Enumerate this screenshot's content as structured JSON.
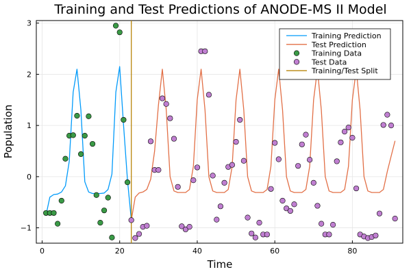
{
  "chart_data": {
    "type": "line",
    "title": "Training and Test Predictions of ANODE-MS II Model",
    "xlabel": "Time",
    "ylabel": "Population",
    "xlim": [
      -1.5,
      93
    ],
    "ylim": [
      -1.3,
      3.05
    ],
    "xticks": [
      0,
      20,
      40,
      60,
      80
    ],
    "yticks": [
      -1,
      0,
      1,
      2,
      3
    ],
    "grid": true,
    "legend_position": "top-right",
    "split_x": 23,
    "series": [
      {
        "name": "Training Prediction",
        "kind": "line",
        "color": "#009AFA",
        "x": [
          1,
          2,
          3,
          4,
          5,
          6,
          7,
          8,
          9,
          10,
          11,
          12,
          13,
          14,
          15,
          16,
          17,
          18,
          19,
          20,
          21,
          22,
          23
        ],
        "y": [
          -0.75,
          -0.4,
          -0.35,
          -0.34,
          -0.3,
          -0.18,
          0.3,
          1.65,
          2.1,
          1.3,
          -0.1,
          -0.3,
          -0.33,
          -0.33,
          -0.33,
          -0.32,
          -0.25,
          0.05,
          1.65,
          2.15,
          1.0,
          -0.05,
          -0.85
        ]
      },
      {
        "name": "Test Prediction",
        "kind": "line",
        "color": "#E26F46",
        "x": [
          23,
          24,
          25,
          26,
          27,
          28,
          29,
          30,
          31,
          32,
          33,
          34,
          35,
          36,
          37,
          38,
          39,
          40,
          41,
          42,
          43,
          44,
          45,
          46,
          47,
          48,
          49,
          50,
          51,
          52,
          53,
          54,
          55,
          56,
          57,
          58,
          59,
          60,
          61,
          62,
          63,
          64,
          65,
          66,
          67,
          68,
          69,
          70,
          71,
          72,
          73,
          74,
          75,
          76,
          77,
          78,
          79,
          80,
          81,
          82,
          83,
          84,
          85,
          86,
          87,
          88,
          89,
          90,
          91
        ],
        "y": [
          -0.85,
          -0.4,
          -0.32,
          -0.3,
          -0.25,
          -0.05,
          0.5,
          1.4,
          2.1,
          1.3,
          0.0,
          -0.28,
          -0.31,
          -0.31,
          -0.31,
          -0.25,
          0.2,
          1.5,
          2.1,
          1.3,
          0.0,
          -0.28,
          -0.31,
          -0.31,
          -0.31,
          -0.25,
          0.2,
          1.5,
          2.1,
          1.3,
          0.0,
          -0.28,
          -0.31,
          -0.31,
          -0.31,
          -0.25,
          0.2,
          1.5,
          2.1,
          1.3,
          0.0,
          -0.28,
          -0.31,
          -0.31,
          -0.31,
          -0.25,
          0.2,
          1.5,
          2.1,
          1.3,
          0.0,
          -0.28,
          -0.31,
          -0.31,
          -0.31,
          -0.25,
          0.2,
          1.5,
          2.1,
          1.3,
          0.0,
          -0.28,
          -0.31,
          -0.31,
          -0.31,
          -0.25,
          0.1,
          0.4,
          0.7
        ]
      },
      {
        "name": "Training Data",
        "kind": "scatter",
        "color": "#3A9A46",
        "x": [
          1,
          2,
          3,
          4,
          5,
          6,
          7,
          8,
          9,
          10,
          11,
          12,
          13,
          14,
          15,
          16,
          17,
          18,
          19,
          20,
          21,
          22
        ],
        "y": [
          -0.71,
          -0.71,
          -0.71,
          -0.92,
          -0.47,
          0.35,
          0.8,
          0.81,
          1.19,
          0.44,
          0.8,
          1.18,
          0.64,
          -0.36,
          -0.9,
          -0.66,
          -0.41,
          -1.19,
          2.95,
          2.82,
          1.11,
          -0.11
        ]
      },
      {
        "name": "Test Data",
        "kind": "scatter",
        "color": "#C07FD1",
        "x": [
          23,
          24,
          25,
          26,
          27,
          28,
          29,
          30,
          31,
          32,
          33,
          34,
          35,
          36,
          37,
          38,
          39,
          40,
          41,
          42,
          43,
          44,
          45,
          46,
          47,
          48,
          49,
          50,
          51,
          52,
          53,
          54,
          55,
          56,
          57,
          58,
          59,
          60,
          61,
          62,
          63,
          64,
          65,
          66,
          67,
          68,
          69,
          70,
          71,
          72,
          73,
          74,
          75,
          76,
          77,
          78,
          79,
          80,
          81,
          82,
          83,
          84,
          85,
          86,
          87,
          88,
          89,
          90,
          91
        ],
        "y": [
          -0.85,
          -1.2,
          -1.12,
          -0.98,
          -0.96,
          0.69,
          0.13,
          0.13,
          1.53,
          1.42,
          1.14,
          0.74,
          -0.2,
          -0.97,
          -1.03,
          -0.98,
          -0.07,
          0.18,
          2.45,
          2.45,
          1.6,
          0.02,
          -0.84,
          -0.58,
          -0.12,
          0.19,
          0.23,
          0.68,
          1.11,
          0.31,
          -0.8,
          -1.11,
          -1.19,
          -0.9,
          -1.13,
          -1.13,
          -0.24,
          0.66,
          0.34,
          -0.47,
          -0.62,
          -0.67,
          -0.54,
          0.21,
          0.63,
          0.82,
          0.33,
          -0.12,
          -0.57,
          -0.92,
          -1.13,
          -1.13,
          -0.94,
          0.3,
          0.67,
          0.88,
          0.96,
          0.76,
          -0.23,
          -1.13,
          -1.17,
          -1.2,
          -1.18,
          -1.15,
          -0.72,
          1.01,
          1.21,
          1.0,
          -0.82
        ]
      },
      {
        "name": "Training/Test Split",
        "kind": "vline",
        "color": "#B8860B"
      }
    ]
  }
}
